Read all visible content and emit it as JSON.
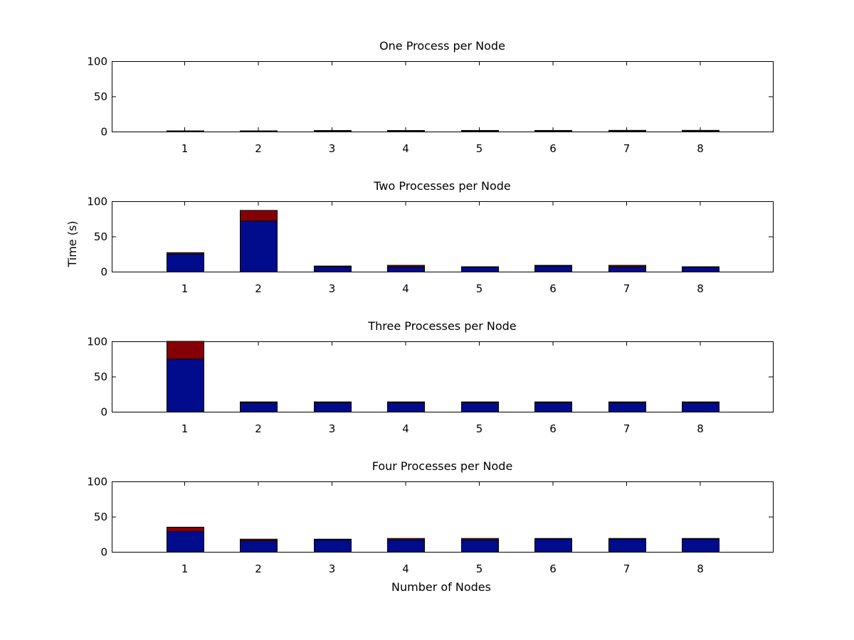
{
  "figure": {
    "ylabel": "Time (s)",
    "xlabel": "Number of Nodes"
  },
  "colors": {
    "lower": "#000c8c",
    "upper": "#850005",
    "frame": "#000000",
    "background": "#ffffff"
  },
  "chart_data": [
    {
      "type": "bar",
      "stacked": true,
      "title": "One Process per Node",
      "categories": [
        "1",
        "2",
        "3",
        "4",
        "5",
        "6",
        "7",
        "8"
      ],
      "series": [
        {
          "values": [
            0.8,
            0.8,
            1.2,
            1.2,
            1.3,
            1.3,
            1.4,
            1.4
          ]
        },
        {
          "values": [
            0.2,
            0.2,
            0.3,
            0.3,
            0.3,
            0.3,
            0.3,
            0.3
          ]
        }
      ],
      "ylim": [
        0,
        100
      ],
      "yticks": [
        0,
        50,
        100
      ],
      "grid": false
    },
    {
      "type": "bar",
      "stacked": true,
      "title": "Two Processes per Node",
      "categories": [
        "1",
        "2",
        "3",
        "4",
        "5",
        "6",
        "7",
        "8"
      ],
      "series": [
        {
          "values": [
            25,
            72,
            7,
            7,
            6,
            8,
            7,
            6
          ]
        },
        {
          "values": [
            2,
            15,
            1,
            2,
            1,
            1,
            2,
            1
          ]
        }
      ],
      "ylim": [
        0,
        100
      ],
      "yticks": [
        0,
        50,
        100
      ],
      "grid": false
    },
    {
      "type": "bar",
      "stacked": true,
      "title": "Three Processes per Node",
      "categories": [
        "1",
        "2",
        "3",
        "4",
        "5",
        "6",
        "7",
        "8"
      ],
      "series": [
        {
          "values": [
            75,
            13,
            13,
            13,
            13,
            13,
            13,
            13
          ]
        },
        {
          "values": [
            25,
            1,
            1,
            1,
            1,
            1,
            1,
            1
          ]
        }
      ],
      "ylim": [
        0,
        100
      ],
      "yticks": [
        0,
        50,
        100
      ],
      "grid": false
    },
    {
      "type": "bar",
      "stacked": true,
      "title": "Four Processes per Node",
      "categories": [
        "1",
        "2",
        "3",
        "4",
        "5",
        "6",
        "7",
        "8"
      ],
      "series": [
        {
          "values": [
            29,
            16,
            17,
            17,
            17,
            18,
            18,
            18
          ]
        },
        {
          "values": [
            6,
            2,
            1,
            2,
            2,
            1,
            1,
            1
          ]
        }
      ],
      "ylim": [
        0,
        100
      ],
      "yticks": [
        0,
        50,
        100
      ],
      "grid": false
    }
  ]
}
